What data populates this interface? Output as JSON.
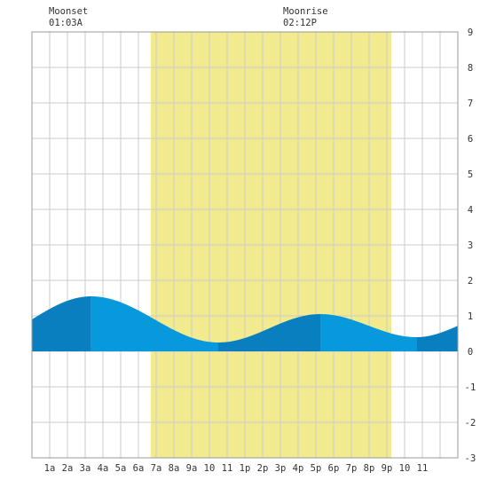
{
  "chart_data": {
    "type": "area",
    "title": "",
    "xlabel": "",
    "ylabel": "",
    "x_tick_labels": [
      "1a",
      "2a",
      "3a",
      "4a",
      "5a",
      "6a",
      "7a",
      "8a",
      "9a",
      "10",
      "11",
      "1p",
      "2p",
      "3p",
      "4p",
      "5p",
      "6p",
      "7p",
      "8p",
      "9p",
      "10",
      "11"
    ],
    "x_range_hours": [
      0,
      24
    ],
    "ylim": [
      -3,
      9
    ],
    "y_ticks": [
      -3,
      -2,
      -1,
      0,
      1,
      2,
      3,
      4,
      5,
      6,
      7,
      8,
      9
    ],
    "grid": true,
    "daylight": {
      "start_hour": 6.7,
      "end_hour": 20.25,
      "color": "#f2ea8e"
    },
    "colors": {
      "tide_dark": "#0a7fbf",
      "tide_light": "#0898dc",
      "grid": "#cccccc",
      "frame": "#999999"
    },
    "tide_extrema": [
      {
        "time": "3:20a",
        "hour": 3.33,
        "height": 1.55,
        "kind": "high"
      },
      {
        "time": "10:30a",
        "hour": 10.5,
        "height": 0.25,
        "kind": "low"
      },
      {
        "time": "4:15p",
        "hour": 16.25,
        "height": 1.05,
        "kind": "high"
      },
      {
        "time": "9:40p",
        "hour": 21.67,
        "height": 0.4,
        "kind": "low"
      }
    ],
    "tide_start": {
      "hour": 0,
      "height": 0.9
    },
    "tide_end": {
      "hour": 24,
      "height": 0.72
    }
  },
  "moon": {
    "moonset": {
      "label": "Moonset",
      "time": "01:03A"
    },
    "moonrise": {
      "label": "Moonrise",
      "time": "02:12P"
    }
  }
}
